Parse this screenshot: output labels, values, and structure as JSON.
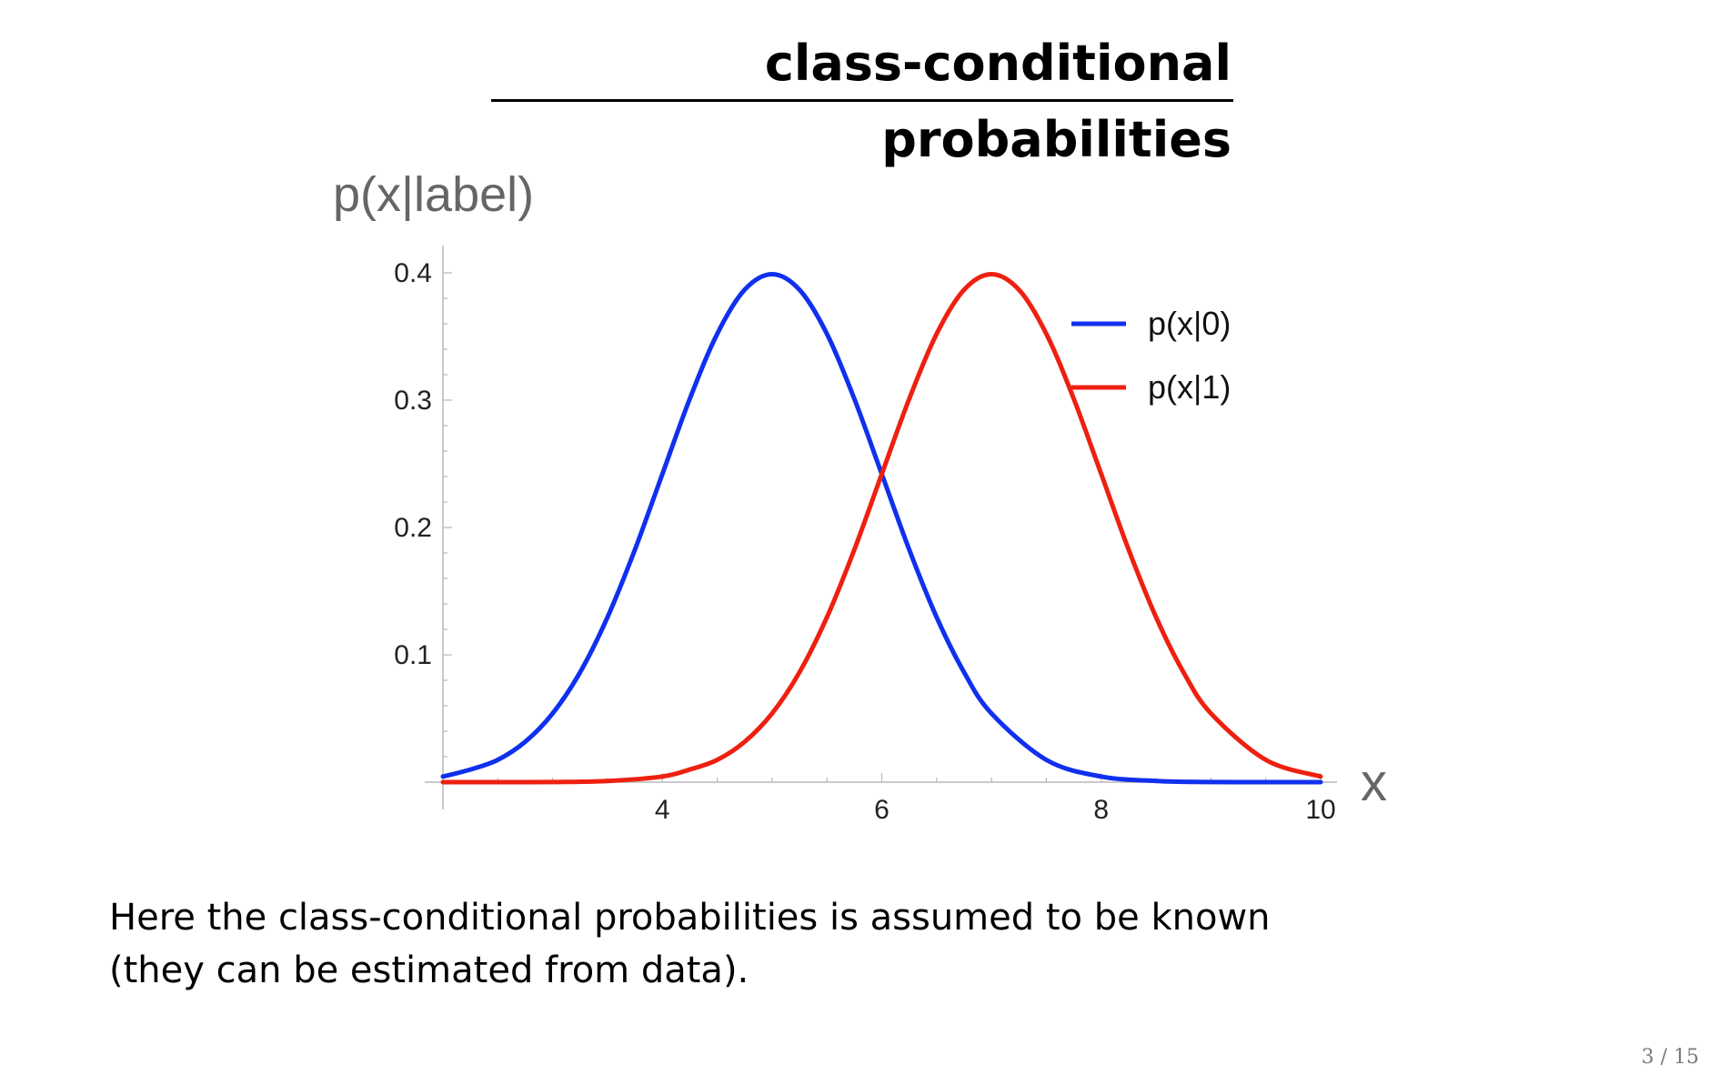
{
  "slide": {
    "title": "class-conditional probabilities",
    "body_lines": [
      "Here the class-conditional probabilities is assumed to be known",
      "(they can be estimated from data)."
    ],
    "page_number": "3 / 15"
  },
  "chart_data": {
    "type": "line",
    "title": "",
    "xlabel": "x",
    "ylabel": "p(x|label)",
    "xlim": [
      2,
      10
    ],
    "ylim": [
      0,
      0.42
    ],
    "x_ticks": [
      4,
      6,
      8,
      10
    ],
    "y_ticks": [
      0.1,
      0.2,
      0.3,
      0.4
    ],
    "grid": false,
    "legend_position": "top-right",
    "series": [
      {
        "name": "p(x|0)",
        "color": "#1030ee",
        "x": [
          2.0,
          2.25,
          2.5,
          2.75,
          3.0,
          3.25,
          3.5,
          3.75,
          4.0,
          4.25,
          4.5,
          4.75,
          5.0,
          5.25,
          5.5,
          5.75,
          6.0,
          6.25,
          6.5,
          6.75,
          7.0,
          7.5,
          8.0,
          8.5,
          9.0,
          9.5,
          10.0
        ],
        "values": [
          0.0044,
          0.0099,
          0.0175,
          0.0317,
          0.054,
          0.0863,
          0.1295,
          0.1826,
          0.242,
          0.3011,
          0.3521,
          0.3867,
          0.3989,
          0.3867,
          0.3521,
          0.3011,
          0.242,
          0.1826,
          0.1295,
          0.0863,
          0.054,
          0.0175,
          0.0044,
          0.0009,
          0.0001,
          0.0,
          0.0
        ]
      },
      {
        "name": "p(x|1)",
        "color": "#ee2010",
        "x": [
          2.0,
          2.5,
          3.0,
          3.5,
          4.0,
          4.25,
          4.5,
          4.75,
          5.0,
          5.25,
          5.5,
          5.75,
          6.0,
          6.25,
          6.5,
          6.75,
          7.0,
          7.25,
          7.5,
          7.75,
          8.0,
          8.25,
          8.5,
          8.75,
          9.0,
          9.5,
          10.0
        ],
        "values": [
          0.0,
          0.0,
          0.0001,
          0.0009,
          0.0044,
          0.0099,
          0.0175,
          0.0317,
          0.054,
          0.0863,
          0.1295,
          0.1826,
          0.242,
          0.3011,
          0.3521,
          0.3867,
          0.3989,
          0.3867,
          0.3521,
          0.3011,
          0.242,
          0.1826,
          0.1295,
          0.0863,
          0.054,
          0.0175,
          0.0044
        ]
      }
    ]
  }
}
